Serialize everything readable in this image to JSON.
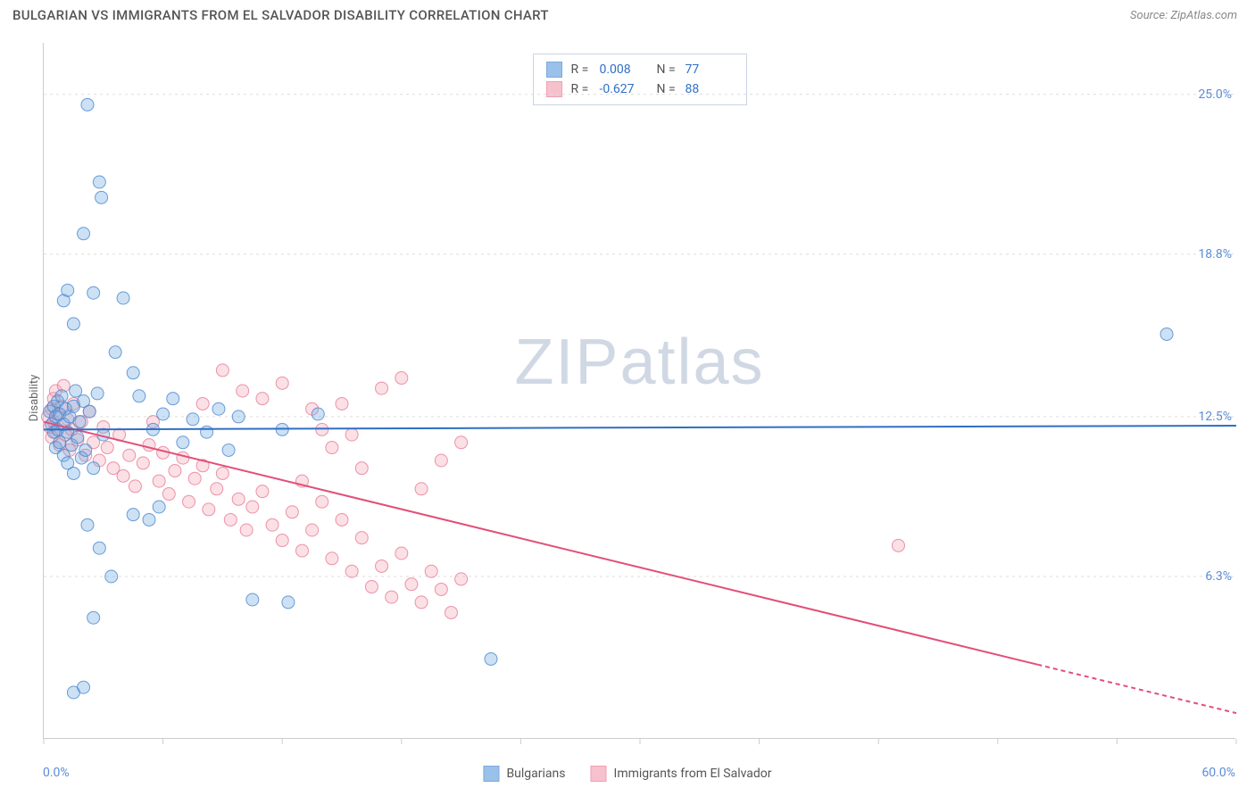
{
  "header": {
    "title": "BULGARIAN VS IMMIGRANTS FROM EL SALVADOR DISABILITY CORRELATION CHART",
    "source_prefix": "Source: ",
    "source_name": "ZipAtlas.com"
  },
  "watermark": {
    "text_left": "ZIP",
    "text_right": "atlas"
  },
  "chart": {
    "type": "scatter",
    "ylabel": "Disability",
    "xlim": [
      0,
      60
    ],
    "ylim": [
      0,
      27
    ],
    "x_min_label": "0.0%",
    "x_max_label": "60.0%",
    "y_ticks": [
      {
        "v": 6.3,
        "label": "6.3%"
      },
      {
        "v": 12.5,
        "label": "12.5%"
      },
      {
        "v": 18.8,
        "label": "18.8%"
      },
      {
        "v": 25.0,
        "label": "25.0%"
      }
    ],
    "x_tick_positions": [
      0,
      6,
      12,
      18,
      24,
      30,
      36,
      42,
      48,
      54,
      60
    ],
    "grid_color": "#dddddd",
    "axis_color": "#cccccc",
    "background_color": "#ffffff",
    "marker_radius": 7,
    "marker_fill_opacity": 0.35,
    "marker_stroke_opacity": 0.8,
    "trend_line_width": 2,
    "series": [
      {
        "id": "bulgarians",
        "label": "Bulgarians",
        "color": "#6ea8e0",
        "stroke": "#4a86cf",
        "line_color": "#2f6fc4",
        "r_value": "0.008",
        "n_value": "77",
        "trend": {
          "x1": 0,
          "y1": 12.0,
          "x2": 60,
          "y2": 12.15,
          "dashed_from": null
        },
        "points": [
          [
            0.3,
            12.7
          ],
          [
            0.4,
            12.2
          ],
          [
            0.5,
            11.9
          ],
          [
            0.5,
            12.9
          ],
          [
            0.6,
            11.3
          ],
          [
            0.6,
            12.5
          ],
          [
            0.7,
            12.0
          ],
          [
            0.7,
            13.1
          ],
          [
            0.8,
            11.5
          ],
          [
            0.8,
            12.6
          ],
          [
            0.9,
            13.3
          ],
          [
            1.0,
            11.0
          ],
          [
            1.0,
            12.2
          ],
          [
            1.1,
            12.8
          ],
          [
            1.2,
            10.7
          ],
          [
            1.2,
            11.9
          ],
          [
            1.3,
            12.5
          ],
          [
            1.4,
            11.4
          ],
          [
            1.5,
            12.9
          ],
          [
            1.5,
            10.3
          ],
          [
            1.6,
            13.5
          ],
          [
            1.7,
            11.7
          ],
          [
            1.8,
            12.3
          ],
          [
            1.9,
            10.9
          ],
          [
            2.0,
            13.1
          ],
          [
            2.1,
            11.2
          ],
          [
            2.3,
            12.7
          ],
          [
            2.5,
            10.5
          ],
          [
            2.7,
            13.4
          ],
          [
            3.0,
            11.8
          ],
          [
            1.0,
            17.0
          ],
          [
            1.2,
            17.4
          ],
          [
            1.5,
            16.1
          ],
          [
            2.2,
            24.6
          ],
          [
            2.8,
            21.6
          ],
          [
            2.9,
            21.0
          ],
          [
            2.0,
            19.6
          ],
          [
            2.5,
            17.3
          ],
          [
            4.0,
            17.1
          ],
          [
            3.6,
            15.0
          ],
          [
            4.5,
            14.2
          ],
          [
            4.8,
            13.3
          ],
          [
            4.5,
            8.7
          ],
          [
            5.3,
            8.5
          ],
          [
            5.8,
            9.0
          ],
          [
            2.2,
            8.3
          ],
          [
            2.8,
            7.4
          ],
          [
            3.4,
            6.3
          ],
          [
            2.5,
            4.7
          ],
          [
            2.0,
            2.0
          ],
          [
            1.5,
            1.8
          ],
          [
            5.5,
            12.0
          ],
          [
            6.0,
            12.6
          ],
          [
            6.5,
            13.2
          ],
          [
            7.0,
            11.5
          ],
          [
            7.5,
            12.4
          ],
          [
            8.2,
            11.9
          ],
          [
            8.8,
            12.8
          ],
          [
            9.3,
            11.2
          ],
          [
            9.8,
            12.5
          ],
          [
            10.5,
            5.4
          ],
          [
            12.0,
            12.0
          ],
          [
            12.3,
            5.3
          ],
          [
            13.8,
            12.6
          ],
          [
            22.5,
            3.1
          ],
          [
            56.5,
            15.7
          ]
        ]
      },
      {
        "id": "el_salvador",
        "label": "Immigrants from El Salvador",
        "color": "#f4a6b8",
        "stroke": "#e77a95",
        "line_color": "#e24f78",
        "r_value": "-0.627",
        "n_value": "88",
        "trend": {
          "x1": 0,
          "y1": 12.3,
          "x2": 60,
          "y2": 1.0,
          "dashed_from": 50
        },
        "points": [
          [
            0.2,
            12.5
          ],
          [
            0.3,
            12.1
          ],
          [
            0.4,
            12.8
          ],
          [
            0.4,
            11.7
          ],
          [
            0.5,
            13.2
          ],
          [
            0.5,
            12.3
          ],
          [
            0.6,
            11.9
          ],
          [
            0.6,
            13.5
          ],
          [
            0.7,
            12.6
          ],
          [
            0.8,
            11.4
          ],
          [
            0.9,
            12.9
          ],
          [
            1.0,
            13.7
          ],
          [
            1.1,
            11.8
          ],
          [
            1.2,
            12.4
          ],
          [
            1.3,
            11.2
          ],
          [
            1.4,
            12.0
          ],
          [
            1.5,
            13.0
          ],
          [
            1.7,
            11.6
          ],
          [
            1.9,
            12.3
          ],
          [
            2.1,
            11.0
          ],
          [
            2.3,
            12.7
          ],
          [
            2.5,
            11.5
          ],
          [
            2.8,
            10.8
          ],
          [
            3.0,
            12.1
          ],
          [
            3.2,
            11.3
          ],
          [
            3.5,
            10.5
          ],
          [
            3.8,
            11.8
          ],
          [
            4.0,
            10.2
          ],
          [
            4.3,
            11.0
          ],
          [
            4.6,
            9.8
          ],
          [
            5.0,
            10.7
          ],
          [
            5.3,
            11.4
          ],
          [
            5.5,
            12.3
          ],
          [
            5.8,
            10.0
          ],
          [
            6.0,
            11.1
          ],
          [
            6.3,
            9.5
          ],
          [
            6.6,
            10.4
          ],
          [
            7.0,
            10.9
          ],
          [
            7.3,
            9.2
          ],
          [
            7.6,
            10.1
          ],
          [
            8.0,
            10.6
          ],
          [
            8.3,
            8.9
          ],
          [
            8.7,
            9.7
          ],
          [
            9.0,
            10.3
          ],
          [
            9.4,
            8.5
          ],
          [
            9.8,
            9.3
          ],
          [
            10.2,
            8.1
          ],
          [
            10.5,
            9.0
          ],
          [
            11.0,
            9.6
          ],
          [
            11.5,
            8.3
          ],
          [
            12.0,
            7.7
          ],
          [
            12.5,
            8.8
          ],
          [
            13.0,
            7.3
          ],
          [
            13.5,
            8.1
          ],
          [
            14.0,
            9.2
          ],
          [
            14.5,
            7.0
          ],
          [
            15.0,
            8.5
          ],
          [
            15.5,
            6.5
          ],
          [
            16.0,
            7.8
          ],
          [
            16.5,
            5.9
          ],
          [
            17.0,
            6.7
          ],
          [
            17.5,
            5.5
          ],
          [
            18.0,
            7.2
          ],
          [
            18.0,
            14.0
          ],
          [
            18.5,
            6.0
          ],
          [
            19.0,
            5.3
          ],
          [
            19.5,
            6.5
          ],
          [
            20.0,
            5.8
          ],
          [
            20.5,
            4.9
          ],
          [
            21.0,
            6.2
          ],
          [
            13.5,
            12.8
          ],
          [
            14.0,
            12.0
          ],
          [
            11.0,
            13.2
          ],
          [
            12.0,
            13.8
          ],
          [
            15.0,
            13.0
          ],
          [
            9.0,
            14.3
          ],
          [
            10.0,
            13.5
          ],
          [
            8.0,
            13.0
          ],
          [
            16.0,
            10.5
          ],
          [
            19.0,
            9.7
          ],
          [
            20.0,
            10.8
          ],
          [
            21.0,
            11.5
          ],
          [
            17.0,
            13.6
          ],
          [
            14.5,
            11.3
          ],
          [
            15.5,
            11.8
          ],
          [
            13.0,
            10.0
          ],
          [
            43.0,
            7.5
          ]
        ]
      }
    ]
  },
  "legend_top": {
    "r_label": "R =",
    "n_label": "N ="
  }
}
